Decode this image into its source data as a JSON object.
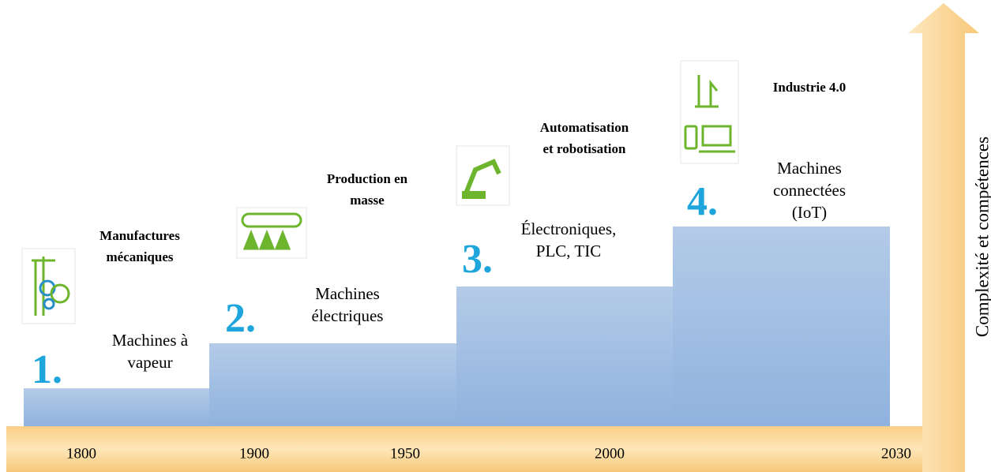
{
  "axis_label": "Complexité et compétences",
  "years": [
    "1800",
    "1900",
    "1950",
    "2000",
    "2030"
  ],
  "stages": [
    {
      "number": "1.",
      "title": [
        "Manufactures",
        "mécaniques"
      ],
      "description": [
        "Machines à",
        "vapeur"
      ]
    },
    {
      "number": "2.",
      "title": [
        "Production en",
        "masse"
      ],
      "description": [
        "Machines",
        "électriques"
      ]
    },
    {
      "number": "3.",
      "title": [
        "Automatisation",
        "et robotisation"
      ],
      "description": [
        "Électroniques,",
        "PLC, TIC"
      ]
    },
    {
      "number": "4.",
      "title": [
        "Industrie 4.0"
      ],
      "description": [
        "Machines",
        "connectées",
        "(IoT)"
      ]
    }
  ]
}
